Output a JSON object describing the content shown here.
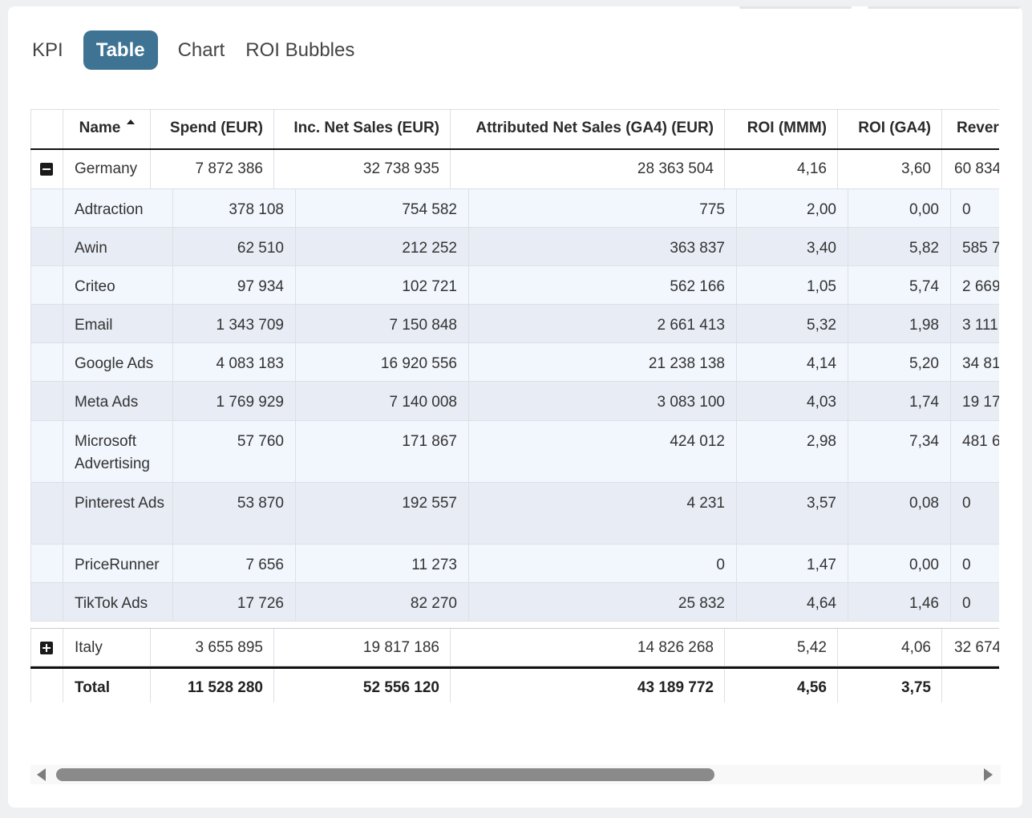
{
  "tabs": [
    {
      "label": "KPI",
      "active": false
    },
    {
      "label": "Table",
      "active": true
    },
    {
      "label": "Chart",
      "active": false
    },
    {
      "label": "ROI Bubbles",
      "active": false
    }
  ],
  "colors": {
    "accent": "#3e7393",
    "row_odd": "#f2f6fd",
    "row_even": "#e7ecf5"
  },
  "table": {
    "columns": [
      "Name",
      "Spend (EUR)",
      "Inc. Net Sales (EUR)",
      "Attributed Net Sales (GA4) (EUR)",
      "ROI (MMM)",
      "ROI (GA4)",
      "Rever"
    ],
    "sorted_column": "Name",
    "groups": [
      {
        "name": "Germany",
        "expanded": true,
        "values": [
          "7 872 386",
          "32 738 935",
          "28 363 504",
          "4,16",
          "3,60",
          "60 834"
        ],
        "children": [
          {
            "name": "Adtraction",
            "values": [
              "378 108",
              "754 582",
              "775",
              "2,00",
              "0,00",
              "0"
            ]
          },
          {
            "name": "Awin",
            "values": [
              "62 510",
              "212 252",
              "363 837",
              "3,40",
              "5,82",
              "585 7"
            ]
          },
          {
            "name": "Criteo",
            "values": [
              "97 934",
              "102 721",
              "562 166",
              "1,05",
              "5,74",
              "2 669"
            ]
          },
          {
            "name": "Email",
            "values": [
              "1 343 709",
              "7 150 848",
              "2 661 413",
              "5,32",
              "1,98",
              "3 111"
            ]
          },
          {
            "name": "Google Ads",
            "values": [
              "4 083 183",
              "16 920 556",
              "21 238 138",
              "4,14",
              "5,20",
              "34 81"
            ]
          },
          {
            "name": "Meta Ads",
            "values": [
              "1 769 929",
              "7 140 008",
              "3 083 100",
              "4,03",
              "1,74",
              "19 17"
            ]
          },
          {
            "name": "Microsoft Advertising",
            "values": [
              "57 760",
              "171 867",
              "424 012",
              "2,98",
              "7,34",
              "481 6"
            ]
          },
          {
            "name": "Pinterest Ads",
            "values": [
              "53 870",
              "192 557",
              "4 231",
              "3,57",
              "0,08",
              "0"
            ]
          },
          {
            "name": "PriceRunner",
            "values": [
              "7 656",
              "11 273",
              "0",
              "1,47",
              "0,00",
              "0"
            ]
          },
          {
            "name": "TikTok Ads",
            "values": [
              "17 726",
              "82 270",
              "25 832",
              "4,64",
              "1,46",
              "0"
            ]
          }
        ]
      },
      {
        "name": "Italy",
        "expanded": false,
        "values": [
          "3 655 895",
          "19 817 186",
          "14 826 268",
          "5,42",
          "4,06",
          "32 674"
        ],
        "children": []
      }
    ],
    "total": {
      "label": "Total",
      "values": [
        "11 528 280",
        "52 556 120",
        "43 189 772",
        "4,56",
        "3,75",
        ""
      ]
    }
  },
  "scrollbar": {
    "position": 0
  }
}
